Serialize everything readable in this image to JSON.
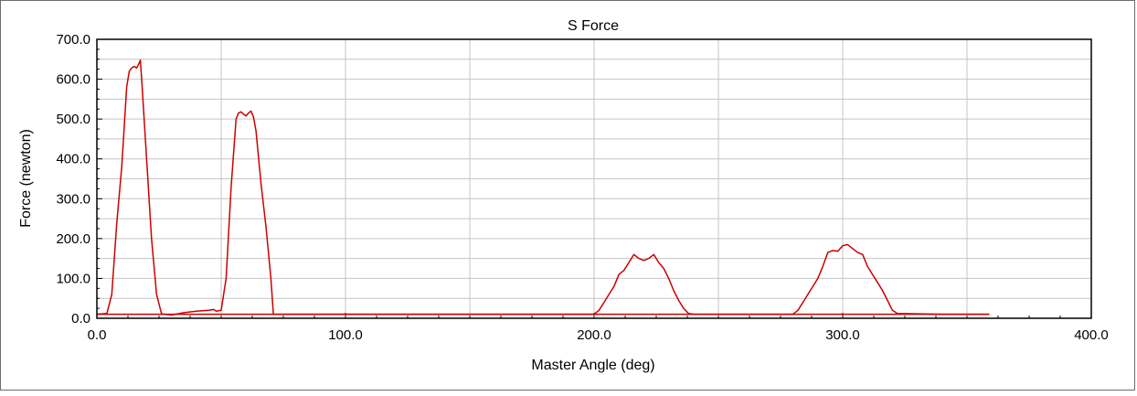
{
  "chart_data": {
    "type": "line",
    "title": "S Force",
    "xlabel": "Master Angle (deg)",
    "ylabel": "Force (newton)",
    "xlim": [
      0,
      400
    ],
    "ylim": [
      0,
      700
    ],
    "x_ticks": [
      "0.0",
      "100.0",
      "200.0",
      "300.0",
      "400.0"
    ],
    "y_ticks": [
      "0.0",
      "100.0",
      "200.0",
      "300.0",
      "400.0",
      "500.0",
      "600.0",
      "700.0"
    ],
    "grid": true,
    "legend": "none",
    "series": [
      {
        "color": "#cc0000",
        "x": [
          0,
          4,
          6,
          8,
          10,
          12,
          13,
          14,
          15,
          16,
          17,
          17.5,
          18,
          20,
          22,
          24,
          26,
          27,
          30,
          35,
          40,
          45,
          47,
          48,
          50,
          52,
          54,
          56,
          57,
          58,
          59,
          60,
          61,
          62,
          63,
          64,
          66,
          68,
          70,
          71,
          100,
          150,
          200,
          202,
          204,
          206,
          208,
          210,
          212,
          214,
          216,
          218,
          220,
          222,
          224,
          226,
          228,
          230,
          232,
          234,
          236,
          238,
          240,
          241,
          260,
          280,
          282,
          284,
          286,
          288,
          290,
          292,
          294,
          296,
          298,
          300,
          302,
          304,
          306,
          308,
          310,
          312,
          314,
          316,
          318,
          320,
          322,
          340,
          359
        ],
        "values": [
          10,
          12,
          60,
          240,
          380,
          580,
          620,
          628,
          632,
          628,
          640,
          648,
          600,
          400,
          200,
          60,
          12,
          10,
          8,
          14,
          18,
          20,
          22,
          18,
          20,
          100,
          330,
          500,
          515,
          518,
          512,
          508,
          515,
          520,
          505,
          470,
          340,
          230,
          100,
          10,
          10,
          10,
          10,
          20,
          40,
          60,
          80,
          110,
          120,
          140,
          160,
          150,
          145,
          150,
          160,
          140,
          125,
          100,
          70,
          45,
          25,
          12,
          10,
          10,
          10,
          10,
          20,
          40,
          60,
          80,
          100,
          130,
          165,
          170,
          168,
          182,
          185,
          175,
          165,
          160,
          130,
          110,
          90,
          70,
          45,
          20,
          12,
          10,
          10
        ]
      },
      {
        "color": "#cc0000",
        "x": [
          0,
          359
        ],
        "values": [
          10,
          10
        ]
      }
    ]
  }
}
